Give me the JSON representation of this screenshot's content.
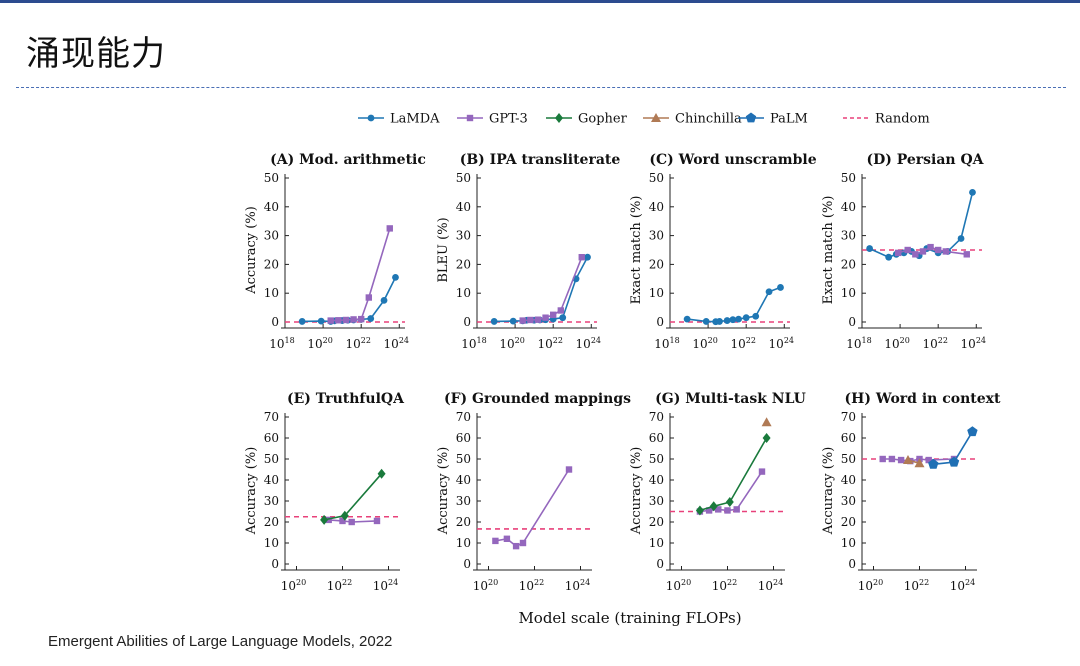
{
  "slide": {
    "title": "涌现能力",
    "citation": "Emergent Abilities of Large Language Models, 2022",
    "xaxis_label": "Model scale (training FLOPs)"
  },
  "legend": [
    {
      "name": "LaMDA",
      "color": "#1f77b4",
      "marker": "circle",
      "dashed": false
    },
    {
      "name": "GPT-3",
      "color": "#9467bd",
      "marker": "square",
      "dashed": false
    },
    {
      "name": "Gopher",
      "color": "#1a7a3c",
      "marker": "diamond",
      "dashed": false
    },
    {
      "name": "Chinchilla",
      "color": "#b07a55",
      "marker": "triangle",
      "dashed": false
    },
    {
      "name": "PaLM",
      "color": "#1f6fb4",
      "marker": "pentagon",
      "dashed": false
    },
    {
      "name": "Random",
      "color": "#e8417a",
      "marker": "none",
      "dashed": true
    }
  ],
  "chart_data": [
    {
      "type": "line",
      "title": "(A) Mod. arithmetic",
      "ylabel": "Accuracy (%)",
      "xlim": [
        18,
        24.3
      ],
      "ylim": [
        0,
        50
      ],
      "yticks": [
        0,
        10,
        20,
        30,
        40,
        50
      ],
      "xticks": [
        18,
        20,
        22,
        24
      ],
      "xtick_labels": [
        "10",
        "10",
        "10",
        "10"
      ],
      "xtick_exps": [
        "18",
        "20",
        "22",
        "24"
      ],
      "random": 0,
      "series": [
        {
          "name": "LaMDA",
          "x": [
            18.9,
            19.9,
            20.4,
            20.6,
            21.0,
            21.3,
            21.6,
            22.0,
            22.5,
            23.2,
            23.8
          ],
          "y": [
            0.2,
            0.3,
            0.2,
            0.4,
            0.5,
            0.6,
            0.7,
            0.9,
            1.2,
            7.5,
            15.5
          ]
        },
        {
          "name": "GPT-3",
          "x": [
            20.4,
            20.8,
            21.2,
            21.6,
            22.0,
            22.4,
            23.5
          ],
          "y": [
            0.5,
            0.6,
            0.7,
            0.9,
            1.0,
            8.5,
            32.5
          ]
        }
      ]
    },
    {
      "type": "line",
      "title": "(B) IPA transliterate",
      "ylabel": "BLEU (%)",
      "xlim": [
        18,
        24.3
      ],
      "ylim": [
        0,
        50
      ],
      "yticks": [
        0,
        10,
        20,
        30,
        40,
        50
      ],
      "xticks": [
        18,
        20,
        22,
        24
      ],
      "xtick_labels": [
        "10",
        "10",
        "10",
        "10"
      ],
      "xtick_exps": [
        "18",
        "20",
        "22",
        "24"
      ],
      "random": 0,
      "series": [
        {
          "name": "LaMDA",
          "x": [
            18.9,
            19.9,
            20.4,
            20.6,
            21.0,
            21.3,
            21.6,
            22.0,
            22.5,
            23.2,
            23.8
          ],
          "y": [
            0.2,
            0.3,
            0.4,
            0.6,
            0.6,
            0.7,
            0.8,
            1.0,
            1.5,
            15.0,
            22.5
          ]
        },
        {
          "name": "GPT-3",
          "x": [
            20.4,
            20.8,
            21.2,
            21.6,
            22.0,
            22.4,
            23.5
          ],
          "y": [
            0.5,
            0.7,
            0.8,
            1.5,
            2.5,
            4.0,
            22.5
          ]
        }
      ]
    },
    {
      "type": "line",
      "title": "(C) Word unscramble",
      "ylabel": "Exact match (%)",
      "xlim": [
        18,
        24.3
      ],
      "ylim": [
        0,
        50
      ],
      "yticks": [
        0,
        10,
        20,
        30,
        40,
        50
      ],
      "xticks": [
        18,
        20,
        22,
        24
      ],
      "xtick_labels": [
        "10",
        "10",
        "10",
        "10"
      ],
      "xtick_exps": [
        "18",
        "20",
        "22",
        "24"
      ],
      "random": 0,
      "series": [
        {
          "name": "LaMDA",
          "x": [
            18.9,
            19.9,
            20.4,
            20.6,
            21.0,
            21.3,
            21.6,
            22.0,
            22.5,
            23.2,
            23.8
          ],
          "y": [
            1.0,
            0.2,
            0.1,
            0.2,
            0.5,
            0.8,
            1.0,
            1.5,
            2.0,
            10.5,
            12.0
          ]
        }
      ]
    },
    {
      "type": "line",
      "title": "(D) Persian QA",
      "ylabel": "Exact match (%)",
      "xlim": [
        18,
        24.3
      ],
      "ylim": [
        0,
        50
      ],
      "yticks": [
        0,
        10,
        20,
        30,
        40,
        50
      ],
      "xticks": [
        18,
        20,
        22,
        24
      ],
      "xtick_labels": [
        "10",
        "10",
        "10",
        "10"
      ],
      "xtick_exps": [
        "18",
        "20",
        "22",
        "24"
      ],
      "random": 25,
      "series": [
        {
          "name": "LaMDA",
          "x": [
            18.4,
            19.4,
            19.8,
            20.2,
            20.6,
            21.0,
            21.4,
            22.0,
            22.5,
            23.2,
            23.8
          ],
          "y": [
            25.5,
            22.5,
            23.5,
            24.0,
            24.5,
            23.0,
            25.5,
            24.0,
            24.5,
            29.0,
            45.0
          ]
        },
        {
          "name": "GPT-3",
          "x": [
            19.9,
            20.4,
            20.8,
            21.2,
            21.6,
            22.0,
            22.4,
            23.5
          ],
          "y": [
            24.0,
            25.0,
            23.5,
            24.5,
            26.0,
            25.0,
            24.5,
            23.5
          ]
        }
      ]
    },
    {
      "type": "line",
      "title": "(E) TruthfulQA",
      "ylabel": "Accuracy (%)",
      "xlim": [
        19.5,
        24.5
      ],
      "ylim": [
        0,
        70
      ],
      "yticks": [
        0,
        10,
        20,
        30,
        40,
        50,
        60,
        70
      ],
      "xticks": [
        20,
        22,
        24
      ],
      "xtick_labels": [
        "10",
        "10",
        "10"
      ],
      "xtick_exps": [
        "20",
        "22",
        "24"
      ],
      "random": 22.5,
      "series": [
        {
          "name": "GPT-3",
          "x": [
            21.4,
            22.0,
            22.4,
            23.5
          ],
          "y": [
            21.0,
            20.5,
            20.0,
            20.5
          ]
        },
        {
          "name": "Gopher",
          "x": [
            21.2,
            22.1,
            23.7
          ],
          "y": [
            21.0,
            23.0,
            43.0
          ]
        }
      ]
    },
    {
      "type": "line",
      "title": "(F) Grounded mappings",
      "ylabel": "Accuracy (%)",
      "xlim": [
        19.5,
        24.5
      ],
      "ylim": [
        0,
        70
      ],
      "yticks": [
        0,
        10,
        20,
        30,
        40,
        50,
        60,
        70
      ],
      "xticks": [
        20,
        22,
        24
      ],
      "xtick_labels": [
        "10",
        "10",
        "10"
      ],
      "xtick_exps": [
        "20",
        "22",
        "24"
      ],
      "random": 16.7,
      "series": [
        {
          "name": "GPT-3",
          "x": [
            20.3,
            20.8,
            21.2,
            21.5,
            23.5
          ],
          "y": [
            11.0,
            12.0,
            8.5,
            10.0,
            45.0
          ]
        }
      ]
    },
    {
      "type": "line",
      "title": "(G) Multi-task NLU",
      "ylabel": "Accuracy (%)",
      "xlim": [
        19.5,
        24.5
      ],
      "ylim": [
        0,
        70
      ],
      "yticks": [
        0,
        10,
        20,
        30,
        40,
        50,
        60,
        70
      ],
      "xticks": [
        20,
        22,
        24
      ],
      "xtick_labels": [
        "10",
        "10",
        "10"
      ],
      "xtick_exps": [
        "20",
        "22",
        "24"
      ],
      "random": 25,
      "series": [
        {
          "name": "GPT-3",
          "x": [
            20.8,
            21.2,
            21.6,
            22.0,
            22.4,
            23.5
          ],
          "y": [
            25.0,
            25.5,
            26.0,
            25.5,
            26.0,
            44.0
          ]
        },
        {
          "name": "Gopher",
          "x": [
            20.8,
            21.4,
            22.1,
            23.7
          ],
          "y": [
            25.5,
            27.5,
            29.5,
            60.0
          ]
        },
        {
          "name": "Chinchilla",
          "x": [
            23.7
          ],
          "y": [
            67.5
          ]
        }
      ]
    },
    {
      "type": "line",
      "title": "(H) Word in context",
      "ylabel": "Accuracy (%)",
      "xlim": [
        19.5,
        24.5
      ],
      "ylim": [
        0,
        70
      ],
      "yticks": [
        0,
        10,
        20,
        30,
        40,
        50,
        60,
        70
      ],
      "xticks": [
        20,
        22,
        24
      ],
      "xtick_labels": [
        "10",
        "10",
        "10"
      ],
      "xtick_exps": [
        "20",
        "22",
        "24"
      ],
      "random": 50,
      "series": [
        {
          "name": "GPT-3",
          "x": [
            20.4,
            20.8,
            21.2,
            21.6,
            22.0,
            22.4,
            23.5
          ],
          "y": [
            50.0,
            50.0,
            49.5,
            49.0,
            50.0,
            49.5,
            50.0
          ]
        },
        {
          "name": "Chinchilla",
          "x": [
            21.5,
            22.0
          ],
          "y": [
            49.5,
            48.0
          ]
        },
        {
          "name": "PaLM",
          "x": [
            22.6,
            23.5,
            24.3
          ],
          "y": [
            47.5,
            48.5,
            63.0
          ]
        }
      ]
    }
  ]
}
